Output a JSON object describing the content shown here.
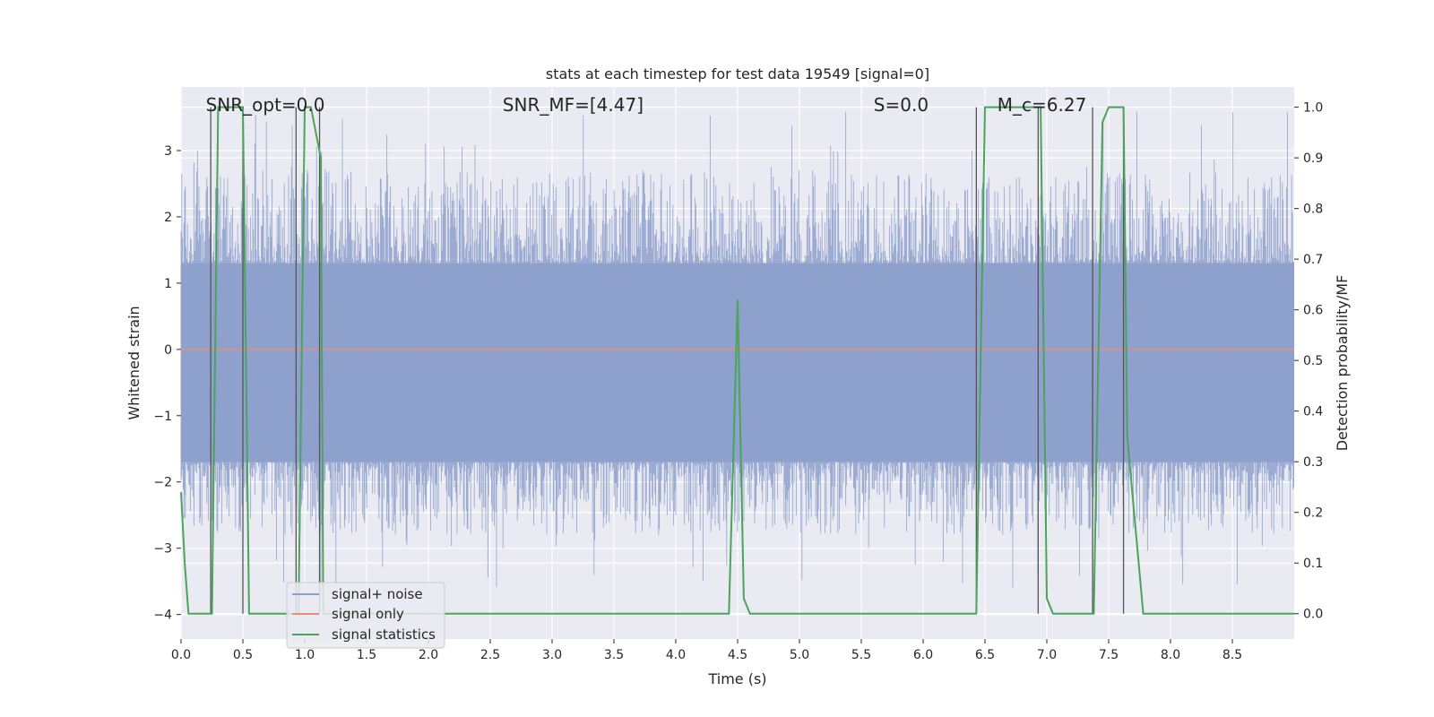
{
  "chart_data": {
    "type": "line",
    "title": "stats at each timestep for test data 19549 [signal=0]",
    "xlabel": "Time (s)",
    "ylabel": "Whitened strain",
    "ylabel_right": "Detection probability/MF",
    "xlim": [
      0.0,
      9.0
    ],
    "ylim_left": [
      -4.37,
      3.96
    ],
    "ylim_right": [
      -0.05,
      1.04
    ],
    "x_ticks": [
      "0.0",
      "0.5",
      "1.0",
      "1.5",
      "2.0",
      "2.5",
      "3.0",
      "3.5",
      "4.0",
      "4.5",
      "5.0",
      "5.5",
      "6.0",
      "6.5",
      "7.0",
      "7.5",
      "8.0",
      "8.5"
    ],
    "y_ticks_left": [
      "3",
      "2",
      "1",
      "0",
      "−1",
      "−2",
      "−3",
      "−4"
    ],
    "y_ticks_right": [
      "1.0",
      "0.9",
      "0.8",
      "0.7",
      "0.6",
      "0.5",
      "0.4",
      "0.3",
      "0.2",
      "0.1",
      "0.0"
    ],
    "grid": true,
    "legend_position": "lower-left",
    "annotations": [
      {
        "text": "SNR_opt=0.0",
        "x": 0.2
      },
      {
        "text": "SNR_MF=[4.47]",
        "x": 2.6
      },
      {
        "text": "S=0.0",
        "x": 5.6
      },
      {
        "text": "M_c=6.27",
        "x": 6.6
      }
    ],
    "series": [
      {
        "name": "signal+ noise",
        "color": "#8da0cb",
        "kind": "noise",
        "band": [
          -1.7,
          1.3
        ],
        "extreme": [
          -3.6,
          3.6
        ]
      },
      {
        "name": "signal only",
        "color": "#e8906e",
        "kind": "flat",
        "value": 0.0
      },
      {
        "name": "signal statistics",
        "color": "#4ca35c",
        "kind": "line",
        "axis": "right",
        "x": [
          0.0,
          0.03,
          0.06,
          0.25,
          0.3,
          0.5,
          0.55,
          0.6,
          0.95,
          1.0,
          1.05,
          1.13,
          1.15,
          1.2,
          4.43,
          4.5,
          4.55,
          4.6,
          6.43,
          6.5,
          6.95,
          7.0,
          7.05,
          7.15,
          7.3,
          7.38,
          7.45,
          7.5,
          7.62,
          7.65,
          7.78,
          8.0,
          9.0
        ],
        "y": [
          0.24,
          0.1,
          0.0,
          0.0,
          1.0,
          1.0,
          0.0,
          0.0,
          0.0,
          1.0,
          1.0,
          0.9,
          0.0,
          0.0,
          0.0,
          0.62,
          0.03,
          0.0,
          0.0,
          1.0,
          1.0,
          0.03,
          0.0,
          0.0,
          0.0,
          0.0,
          0.97,
          1.0,
          1.0,
          0.35,
          0.0,
          0.0,
          0.0
        ]
      }
    ],
    "vertical_markers_x": [
      0.24,
      0.5,
      0.93,
      1.12,
      6.43,
      6.93,
      7.37,
      7.62
    ]
  }
}
